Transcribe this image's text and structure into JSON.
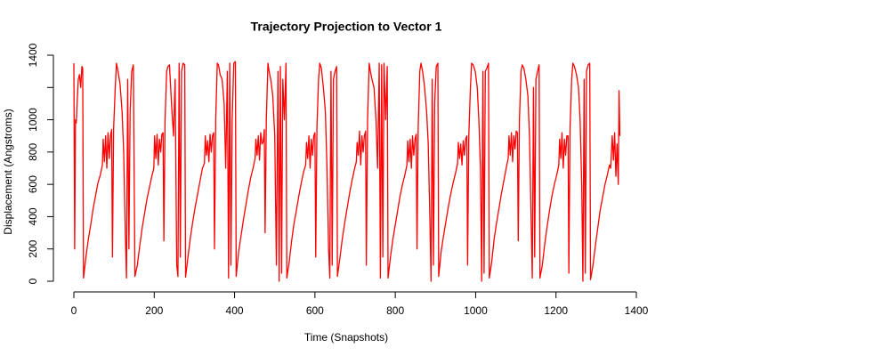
{
  "chart_data": {
    "type": "line",
    "title": "Trajectory Projection to Vector 1",
    "x_label": "Time (Snapshots)",
    "y_label": "Displacement (Angstroms)",
    "xlim": [
      0,
      1400
    ],
    "ylim": [
      0,
      1400
    ],
    "xticks": [
      0,
      200,
      400,
      600,
      800,
      1000,
      1200,
      1400
    ],
    "yticks": [
      0,
      200,
      400,
      600,
      800,
      1000,
      {
        "value": 1200,
        "label": null
      },
      1400
    ],
    "grid": false,
    "series": [
      {
        "color": "#ff0000",
        "x": [
          0,
          2,
          4,
          6,
          8,
          11,
          14,
          17,
          20,
          22,
          24,
          30,
          36,
          42,
          48,
          54,
          60,
          66,
          71,
          73,
          76,
          79,
          82,
          85,
          88,
          91,
          94,
          96,
          99,
          103,
          106,
          110,
          115,
          120,
          124,
          128,
          131,
          134,
          137,
          140,
          144,
          148,
          152,
          158,
          164,
          170,
          176,
          182,
          188,
          194,
          199,
          201,
          204,
          207,
          210,
          213,
          216,
          219,
          222,
          224,
          227,
          231,
          234,
          238,
          243,
          248,
          252,
          256,
          259,
          262,
          265,
          268,
          272,
          276,
          278,
          284,
          290,
          296,
          302,
          308,
          314,
          320,
          325,
          327,
          330,
          333,
          336,
          339,
          342,
          345,
          348,
          350,
          353,
          357,
          360,
          364,
          369,
          374,
          378,
          382,
          385,
          388,
          391,
          394,
          398,
          402,
          404,
          410,
          416,
          422,
          428,
          434,
          440,
          446,
          451,
          453,
          456,
          459,
          462,
          465,
          468,
          471,
          474,
          476,
          479,
          483,
          486,
          490,
          495,
          500,
          504,
          508,
          511,
          514,
          517,
          520,
          524,
          528,
          530,
          536,
          542,
          548,
          554,
          560,
          566,
          572,
          577,
          579,
          582,
          585,
          588,
          591,
          594,
          597,
          600,
          602,
          605,
          609,
          612,
          616,
          621,
          626,
          630,
          634,
          637,
          640,
          643,
          646,
          650,
          654,
          656,
          662,
          668,
          674,
          680,
          686,
          692,
          698,
          703,
          705,
          708,
          711,
          714,
          717,
          720,
          723,
          726,
          728,
          731,
          735,
          738,
          742,
          747,
          752,
          756,
          760,
          763,
          766,
          769,
          772,
          776,
          780,
          782,
          788,
          794,
          800,
          806,
          812,
          818,
          824,
          829,
          831,
          834,
          837,
          840,
          843,
          846,
          849,
          852,
          854,
          857,
          861,
          864,
          868,
          873,
          878,
          882,
          886,
          889,
          892,
          895,
          898,
          902,
          906,
          908,
          914,
          920,
          926,
          932,
          938,
          944,
          950,
          955,
          957,
          960,
          963,
          966,
          969,
          972,
          975,
          978,
          980,
          983,
          987,
          990,
          994,
          999,
          1004,
          1008,
          1012,
          1015,
          1018,
          1021,
          1024,
          1028,
          1032,
          1034,
          1040,
          1046,
          1052,
          1058,
          1064,
          1070,
          1076,
          1081,
          1083,
          1086,
          1089,
          1092,
          1095,
          1098,
          1101,
          1104,
          1106,
          1109,
          1113,
          1116,
          1120,
          1125,
          1130,
          1134,
          1138,
          1141,
          1144,
          1147,
          1150,
          1154,
          1158,
          1160,
          1166,
          1172,
          1178,
          1184,
          1190,
          1196,
          1202,
          1207,
          1209,
          1212,
          1215,
          1218,
          1221,
          1224,
          1227,
          1230,
          1232,
          1235,
          1239,
          1242,
          1246,
          1251,
          1256,
          1260,
          1264,
          1267,
          1270,
          1273,
          1276,
          1280,
          1284,
          1286,
          1292,
          1298,
          1304,
          1310,
          1316,
          1322,
          1328,
          1333,
          1336,
          1340,
          1343,
          1346,
          1349,
          1352,
          1355,
          1357,
          1359
        ],
        "values": [
          1350,
          200,
          1000,
          980,
          1100,
          1250,
          1280,
          1200,
          1330,
          1320,
          20,
          150,
          260,
          350,
          450,
          530,
          610,
          660,
          720,
          880,
          740,
          900,
          700,
          920,
          760,
          900,
          940,
          150,
          950,
          1200,
          1350,
          1300,
          1220,
          1050,
          800,
          300,
          20,
          1250,
          200,
          1050,
          1300,
          1340,
          30,
          100,
          220,
          330,
          420,
          510,
          580,
          650,
          700,
          900,
          760,
          910,
          720,
          880,
          800,
          910,
          920,
          250,
          1000,
          1300,
          1330,
          1340,
          1100,
          900,
          1250,
          100,
          30,
          1350,
          150,
          1300,
          1350,
          1340,
          25,
          150,
          270,
          370,
          460,
          540,
          620,
          700,
          730,
          900,
          780,
          870,
          740,
          910,
          800,
          900,
          920,
          200,
          1000,
          1350,
          1340,
          1280,
          1250,
          1100,
          700,
          1300,
          20,
          1350,
          100,
          1000,
          1350,
          1360,
          30,
          180,
          280,
          380,
          470,
          560,
          640,
          700,
          760,
          880,
          780,
          900,
          750,
          920,
          850,
          860,
          940,
          300,
          1000,
          1350,
          1300,
          1250,
          1150,
          900,
          100,
          1300,
          0,
          1330,
          50,
          1250,
          1000,
          1350,
          20,
          120,
          250,
          360,
          440,
          530,
          610,
          680,
          720,
          860,
          760,
          900,
          700,
          880,
          780,
          900,
          920,
          150,
          950,
          1250,
          1350,
          1320,
          1200,
          1050,
          700,
          200,
          20,
          1300,
          100,
          1250,
          1300,
          1330,
          30,
          140,
          260,
          360,
          450,
          540,
          620,
          690,
          740,
          860,
          780,
          930,
          720,
          900,
          800,
          900,
          930,
          100,
          1000,
          1350,
          1300,
          1250,
          1200,
          1000,
          700,
          1350,
          20,
          1340,
          150,
          1350,
          1000,
          1330,
          20,
          150,
          260,
          350,
          440,
          530,
          600,
          660,
          720,
          870,
          740,
          880,
          700,
          900,
          780,
          880,
          910,
          200,
          950,
          1300,
          1350,
          1300,
          1200,
          1050,
          850,
          400,
          0,
          1250,
          100,
          1100,
          1330,
          1350,
          30,
          180,
          280,
          370,
          460,
          540,
          610,
          670,
          730,
          860,
          760,
          850,
          720,
          870,
          780,
          880,
          900,
          100,
          900,
          1200,
          1350,
          1340,
          1300,
          1200,
          1000,
          700,
          0,
          1300,
          50,
          1300,
          1320,
          1350,
          20,
          120,
          260,
          360,
          450,
          540,
          620,
          700,
          760,
          900,
          780,
          920,
          740,
          900,
          820,
          930,
          920,
          250,
          1000,
          1300,
          1340,
          1320,
          1250,
          1150,
          900,
          400,
          20,
          1200,
          150,
          1250,
          1300,
          1340,
          20,
          100,
          230,
          340,
          440,
          530,
          600,
          660,
          720,
          880,
          760,
          920,
          700,
          880,
          780,
          900,
          900,
          50,
          950,
          1250,
          1350,
          1330,
          1280,
          1200,
          1000,
          600,
          0,
          1250,
          50,
          1300,
          1340,
          1350,
          10,
          100,
          220,
          330,
          440,
          520,
          600,
          660,
          720,
          700,
          900,
          750,
          920,
          650,
          850,
          600,
          1180,
          900
        ]
      }
    ]
  }
}
